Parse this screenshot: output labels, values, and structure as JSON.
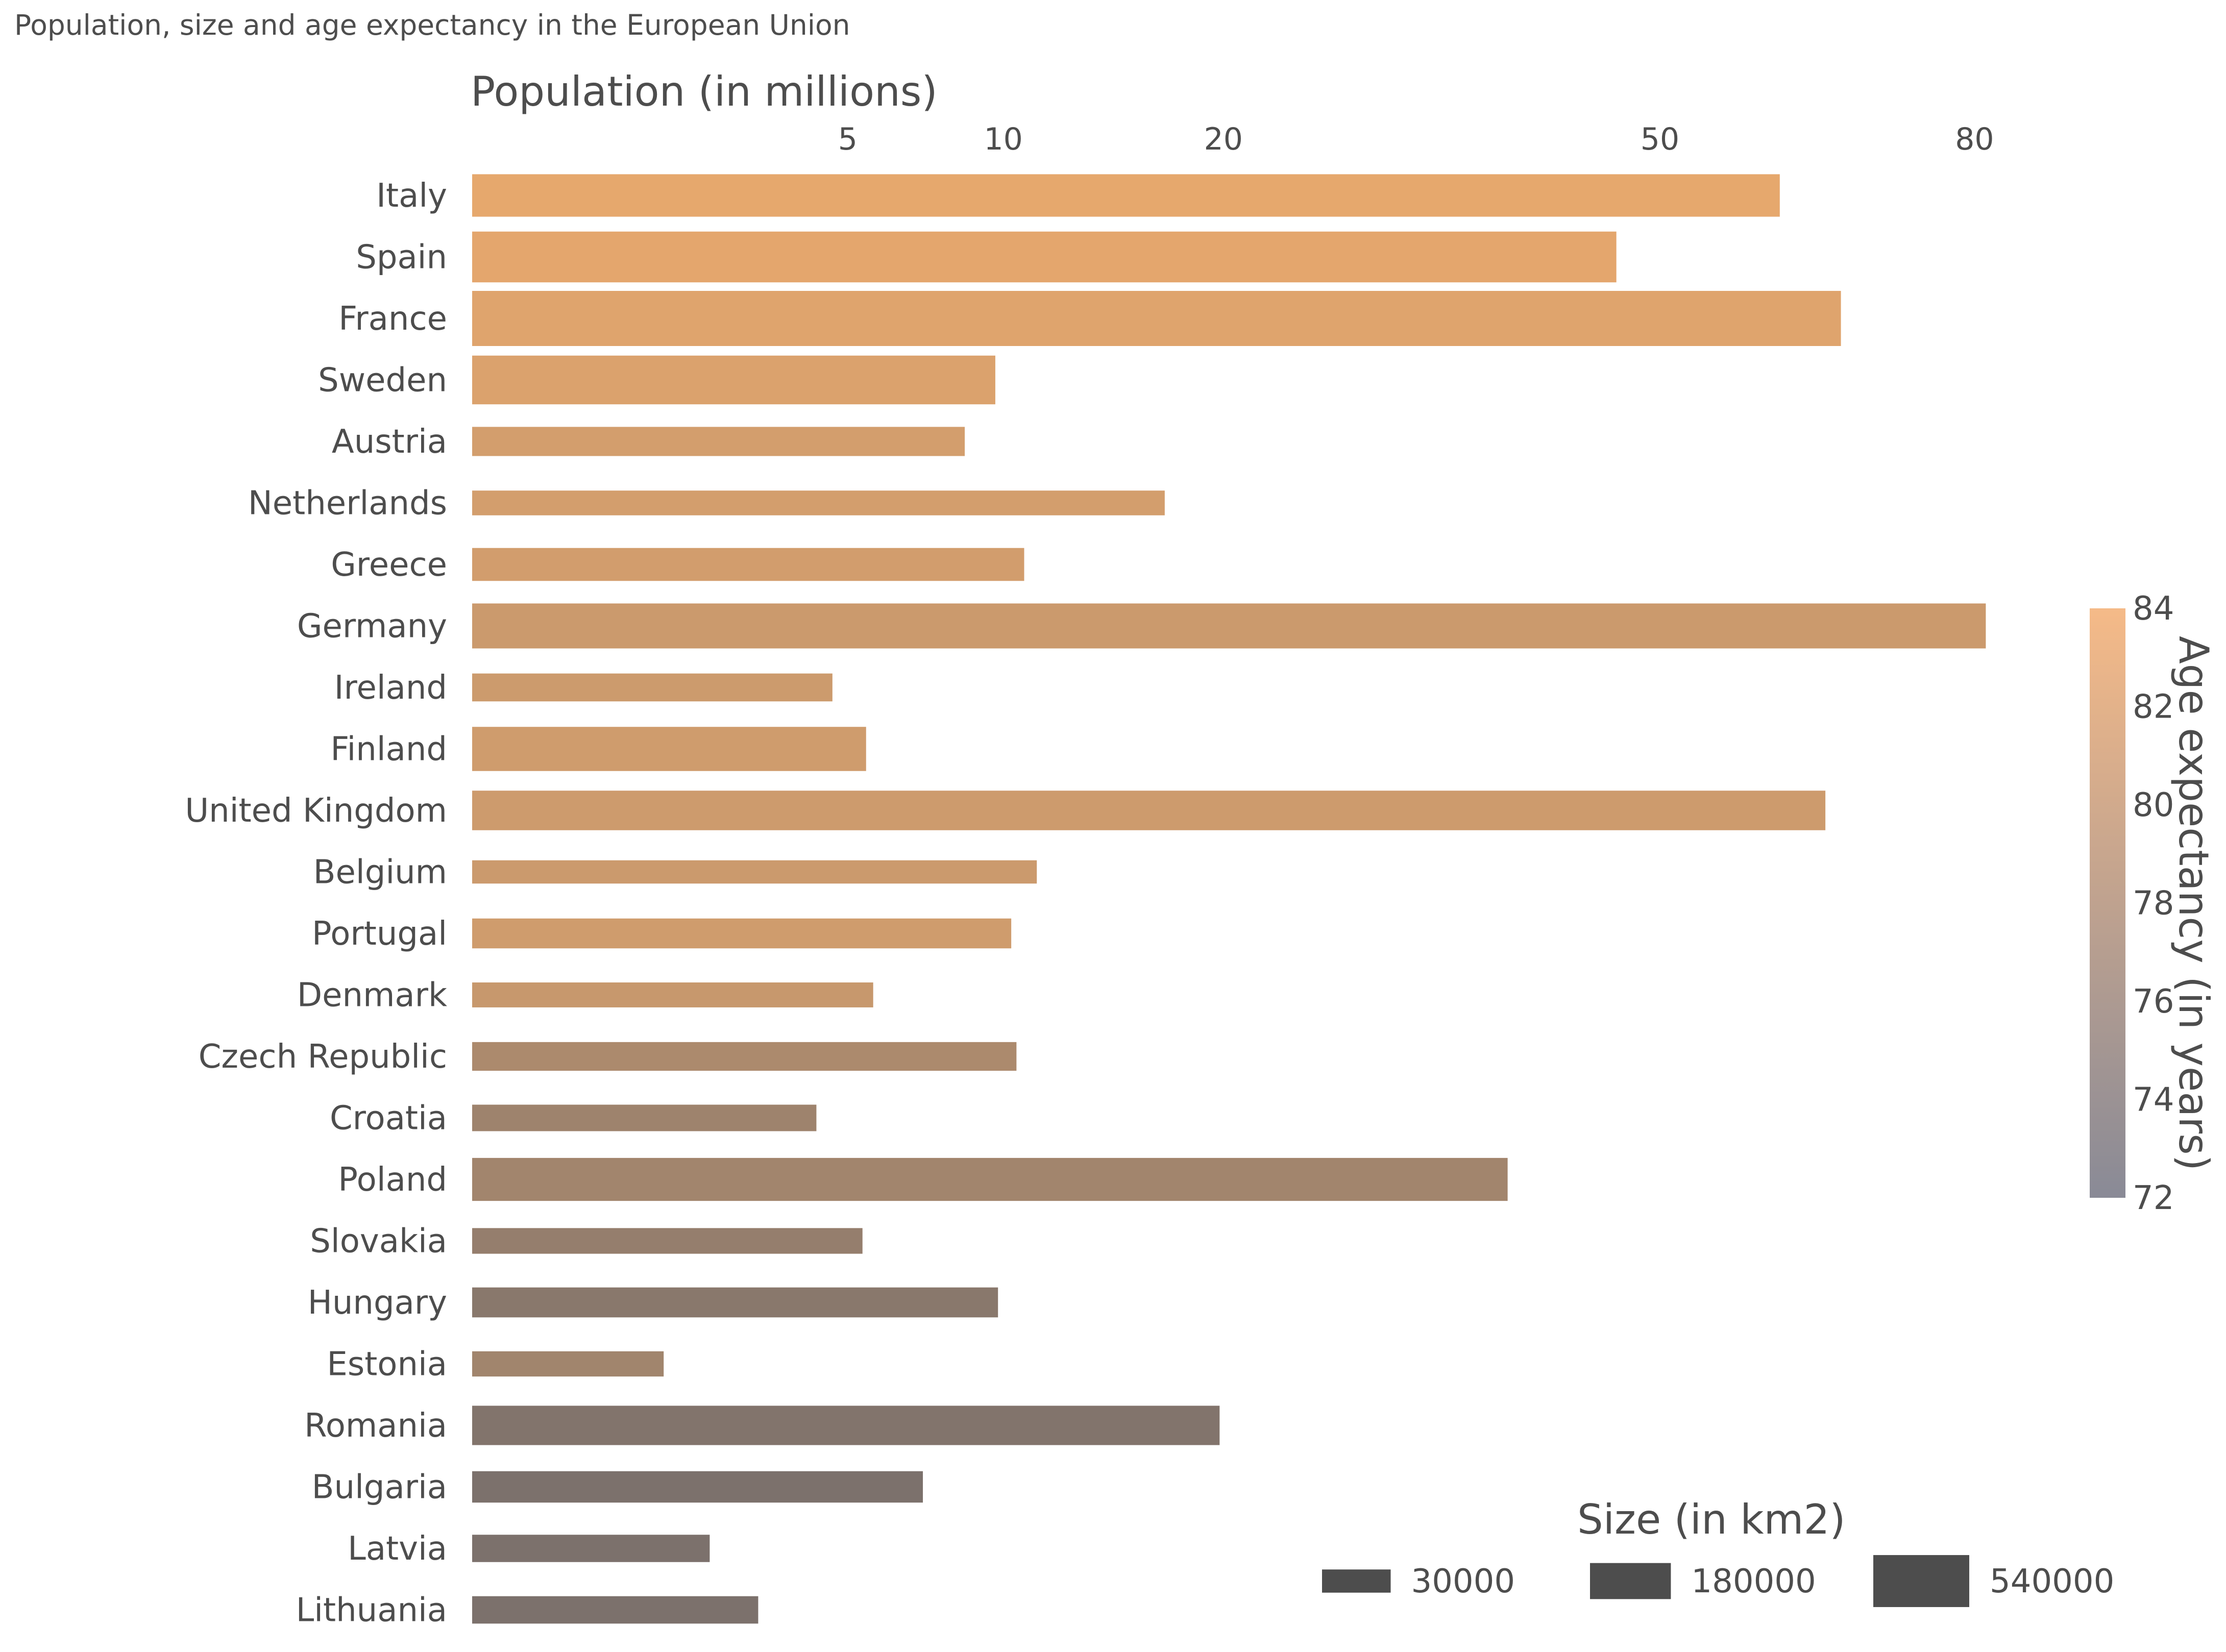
{
  "chart_data": {
    "type": "bar",
    "orientation": "horizontal",
    "title": "Population, size and age expectancy in the European Union",
    "xlabel": "Population (in millions)",
    "ylabel": "",
    "x_axis_position": "top",
    "x_scale": "sqrt",
    "xlim": [
      0,
      82
    ],
    "x_ticks": [
      5,
      10,
      20,
      50,
      80
    ],
    "x_tick_labels": [
      "5",
      "10",
      "20",
      "50",
      "80"
    ],
    "grid": false,
    "categories": [
      "Italy",
      "Spain",
      "France",
      "Sweden",
      "Austria",
      "Netherlands",
      "Greece",
      "Germany",
      "Ireland",
      "Finland",
      "United Kingdom",
      "Belgium",
      "Portugal",
      "Denmark",
      "Czech Republic",
      "Croatia",
      "Poland",
      "Slovakia",
      "Hungary",
      "Estonia",
      "Romania",
      "Bulgaria",
      "Latvia",
      "Lithuania"
    ],
    "values": [
      60.6,
      46.4,
      66.4,
      9.7,
      8.6,
      17.0,
      10.8,
      81.2,
      4.6,
      5.5,
      64.9,
      11.3,
      10.3,
      5.7,
      10.5,
      4.2,
      38.0,
      5.4,
      9.8,
      1.3,
      19.8,
      7.2,
      2.0,
      2.9
    ],
    "size_km2": [
      301338,
      505990,
      632834,
      450295,
      83879,
      41543,
      131957,
      357386,
      70273,
      338424,
      242495,
      30528,
      92212,
      43094,
      78868,
      56594,
      312679,
      49035,
      93030,
      45227,
      238391,
      110994,
      64589,
      65300
    ],
    "age_expectancy": [
      83.0,
      82.8,
      82.5,
      82.2,
      81.6,
      81.6,
      81.5,
      81.0,
      81.1,
      81.3,
      81.2,
      81.0,
      81.3,
      80.7,
      78.6,
      77.5,
      77.8,
      76.7,
      75.7,
      77.7,
      75.0,
      74.5,
      74.5,
      74.5
    ],
    "color_scale": {
      "title": "Age expectancy (in years)",
      "min": 72,
      "max": 84,
      "ticks": [
        "72",
        "74",
        "76",
        "78",
        "80",
        "82",
        "84"
      ],
      "low_color": "#898a96",
      "high_color": "#f5ba88"
    },
    "size_legend": {
      "title": "Size (in km2)",
      "entries": [
        {
          "label": "30000",
          "value": 30000
        },
        {
          "label": "180000",
          "value": 180000
        },
        {
          "label": "540000",
          "value": 540000
        }
      ],
      "color": "#4d4d4d"
    },
    "legend_placement": "bottom-right"
  }
}
